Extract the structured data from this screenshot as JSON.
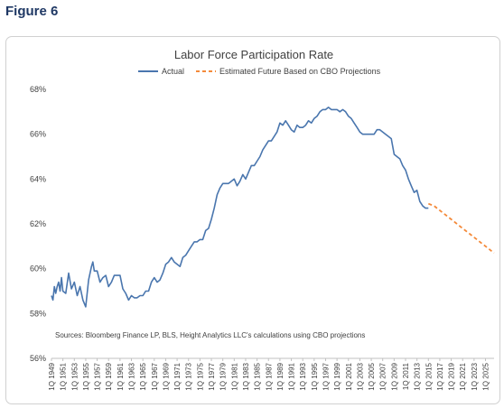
{
  "figure_label": "Figure 6",
  "colors": {
    "actual": "#4a76ae",
    "projection": "#f48a3a",
    "axis": "#c0c0c0",
    "text": "#404040"
  },
  "chart_data": {
    "type": "line",
    "title": "Labor Force Participation Rate",
    "source_note": "Sources: Bloomberg Finance LP, BLS, Height Analytics LLC's calculations using CBO projections",
    "xlabel": "",
    "ylabel": "",
    "ylim": [
      56,
      68
    ],
    "y_ticks": [
      56,
      58,
      60,
      62,
      64,
      66,
      68
    ],
    "y_tick_labels": [
      "56%",
      "58%",
      "60%",
      "62%",
      "64%",
      "66%",
      "68%"
    ],
    "xlim": [
      1949,
      2026.5
    ],
    "x_tick_labels": [
      "1Q 1949",
      "1Q 1951",
      "1Q 1953",
      "1Q 1955",
      "1Q 1957",
      "1Q 1959",
      "1Q 1961",
      "1Q 1963",
      "1Q 1965",
      "1Q 1967",
      "1Q 1969",
      "1Q 1971",
      "1Q 1973",
      "1Q 1975",
      "1Q 1977",
      "1Q 1979",
      "1Q 1981",
      "1Q 1983",
      "1Q 1985",
      "1Q 1987",
      "1Q 1989",
      "1Q 1991",
      "1Q 1993",
      "1Q 1995",
      "1Q 1997",
      "1Q 1999",
      "1Q 2001",
      "1Q 2003",
      "1Q 2005",
      "1Q 2007",
      "1Q 2009",
      "1Q 2011",
      "1Q 2013",
      "1Q 2015",
      "1Q 2017",
      "1Q 2019",
      "1Q 2021",
      "1Q 2023",
      "1Q 2025"
    ],
    "legend_position": "top-center",
    "grid": false,
    "series": [
      {
        "name": "Actual",
        "style": "solid",
        "x": [
          1949.0,
          1949.25,
          1949.5,
          1949.75,
          1950.0,
          1950.25,
          1950.5,
          1950.75,
          1951.0,
          1951.5,
          1952.0,
          1952.5,
          1953.0,
          1953.5,
          1954.0,
          1954.5,
          1955.0,
          1955.5,
          1956.0,
          1956.25,
          1956.5,
          1957.0,
          1957.5,
          1958.0,
          1958.5,
          1959.0,
          1959.5,
          1960.0,
          1960.5,
          1961.0,
          1961.5,
          1962.0,
          1962.5,
          1963.0,
          1963.5,
          1964.0,
          1964.5,
          1965.0,
          1965.5,
          1966.0,
          1966.5,
          1967.0,
          1967.5,
          1968.0,
          1968.5,
          1969.0,
          1969.5,
          1970.0,
          1970.5,
          1971.0,
          1971.5,
          1972.0,
          1972.5,
          1973.0,
          1973.5,
          1974.0,
          1974.5,
          1975.0,
          1975.5,
          1976.0,
          1976.5,
          1977.0,
          1977.5,
          1978.0,
          1978.5,
          1979.0,
          1979.5,
          1980.0,
          1980.5,
          1981.0,
          1981.5,
          1982.0,
          1982.5,
          1983.0,
          1983.5,
          1984.0,
          1984.5,
          1985.0,
          1985.5,
          1986.0,
          1986.5,
          1987.0,
          1987.5,
          1988.0,
          1988.5,
          1989.0,
          1989.5,
          1990.0,
          1990.5,
          1991.0,
          1991.5,
          1992.0,
          1992.5,
          1993.0,
          1993.5,
          1994.0,
          1994.5,
          1995.0,
          1995.5,
          1996.0,
          1996.5,
          1997.0,
          1997.5,
          1998.0,
          1998.5,
          1999.0,
          1999.5,
          2000.0,
          2000.5,
          2001.0,
          2001.5,
          2002.0,
          2002.5,
          2003.0,
          2003.5,
          2004.0,
          2004.5,
          2005.0,
          2005.5,
          2006.0,
          2006.5,
          2007.0,
          2007.5,
          2008.0,
          2008.5,
          2009.0,
          2009.5,
          2010.0,
          2010.5,
          2011.0,
          2011.5,
          2012.0,
          2012.5,
          2013.0,
          2013.5,
          2014.0,
          2014.5,
          2015.0
        ],
        "values": [
          58.8,
          58.6,
          59.2,
          58.9,
          59.2,
          59.4,
          59.0,
          59.6,
          59.0,
          58.9,
          59.8,
          59.1,
          59.4,
          58.8,
          59.2,
          58.6,
          58.3,
          59.5,
          60.1,
          60.3,
          59.9,
          59.9,
          59.4,
          59.6,
          59.7,
          59.2,
          59.4,
          59.7,
          59.7,
          59.7,
          59.1,
          58.9,
          58.6,
          58.8,
          58.7,
          58.7,
          58.8,
          58.8,
          59.0,
          59.0,
          59.4,
          59.6,
          59.4,
          59.5,
          59.8,
          60.2,
          60.3,
          60.5,
          60.3,
          60.2,
          60.1,
          60.5,
          60.6,
          60.8,
          61.0,
          61.2,
          61.2,
          61.3,
          61.3,
          61.7,
          61.8,
          62.2,
          62.7,
          63.3,
          63.6,
          63.8,
          63.8,
          63.8,
          63.9,
          64.0,
          63.7,
          63.9,
          64.2,
          64.0,
          64.3,
          64.6,
          64.6,
          64.8,
          65.0,
          65.3,
          65.5,
          65.7,
          65.7,
          65.9,
          66.1,
          66.5,
          66.4,
          66.6,
          66.4,
          66.2,
          66.1,
          66.4,
          66.3,
          66.3,
          66.4,
          66.6,
          66.5,
          66.7,
          66.8,
          67.0,
          67.1,
          67.1,
          67.2,
          67.1,
          67.1,
          67.1,
          67.0,
          67.1,
          67.0,
          66.8,
          66.7,
          66.5,
          66.3,
          66.1,
          66.0,
          66.0,
          66.0,
          66.0,
          66.0,
          66.2,
          66.2,
          66.1,
          66.0,
          65.9,
          65.8,
          65.1,
          65.0,
          64.9,
          64.6,
          64.4,
          64.0,
          63.7,
          63.4,
          63.5,
          63.0,
          62.8,
          62.7,
          62.7
        ]
      },
      {
        "name": "Estimated Future Based on CBO Projections",
        "style": "dashed",
        "x": [
          2015.0,
          2016.0,
          2017.0,
          2018.0,
          2019.0,
          2020.0,
          2021.0,
          2022.0,
          2023.0,
          2024.0,
          2025.0,
          2026.0,
          2026.5
        ],
        "values": [
          62.9,
          62.8,
          62.6,
          62.4,
          62.2,
          62.0,
          61.8,
          61.6,
          61.4,
          61.2,
          61.0,
          60.8,
          60.7
        ]
      }
    ]
  }
}
